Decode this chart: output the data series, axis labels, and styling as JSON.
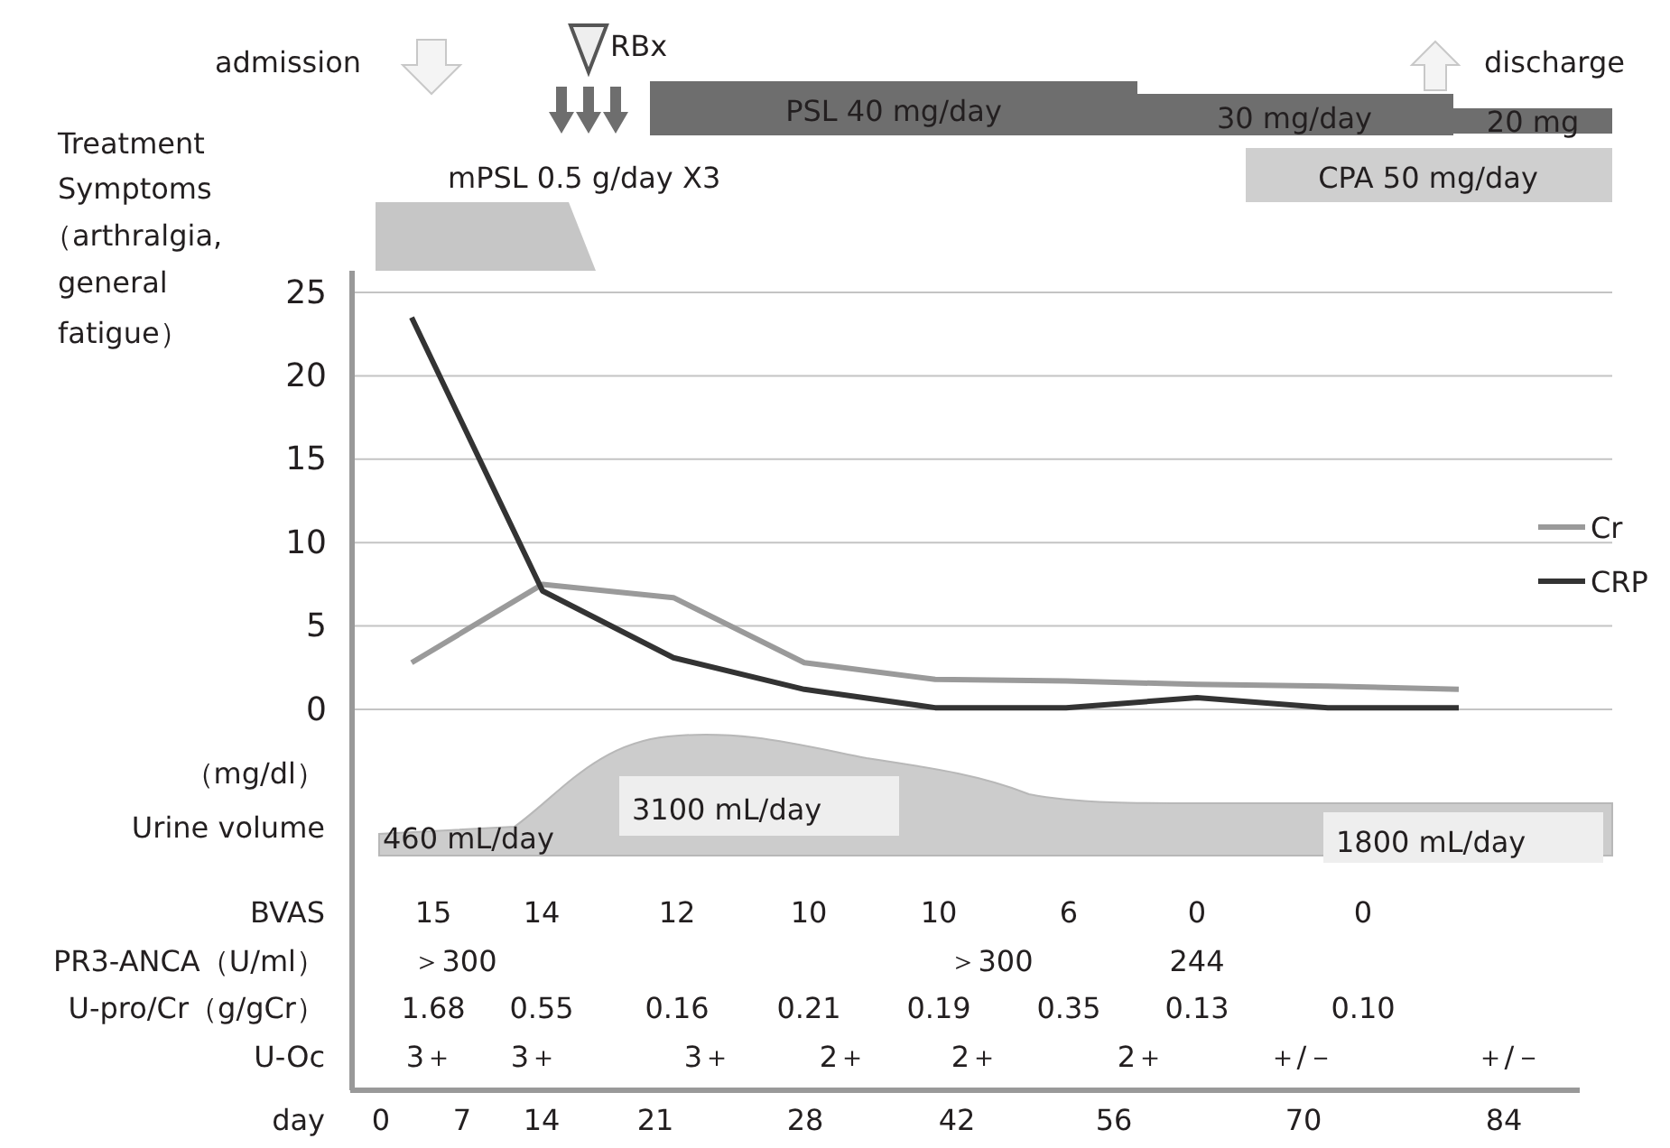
{
  "chart_data": {
    "type": "line",
    "ylabel": "（mg/dl）",
    "categories": [
      null,
      null,
      null,
      null,
      null,
      null,
      null,
      null,
      null
    ],
    "series": [
      {
        "name": "Cr",
        "color": "#9a9a9a",
        "values": [
          2.8,
          7.5,
          6.7,
          2.8,
          1.8,
          1.7,
          1.5,
          1.4,
          1.2
        ]
      },
      {
        "name": "CRP",
        "color": "#333333",
        "values": [
          23.5,
          7.1,
          3.1,
          1.2,
          0.1,
          0.1,
          0.7,
          0.1,
          0.1
        ]
      }
    ],
    "ylim": [
      0,
      25
    ],
    "yticks": [
      0,
      5,
      10,
      15,
      20,
      25
    ],
    "grid": "y",
    "legend": "right",
    "annotations": [
      "admission",
      "RBx",
      "PSL 40 mg/day",
      "30 mg/day",
      "20 mg",
      "discharge",
      "mPSL 0.5 g/day X3",
      "CPA 50 mg/day",
      "Treatment",
      "Symptoms",
      "（arthralgia,",
      "general",
      "fatigue）",
      "Urine volume",
      "460 mL/day",
      "3100 mL/day",
      "1800 mL/day",
      "BVAS",
      "15",
      "14",
      "12",
      "10",
      "10",
      "6",
      "0",
      "0",
      "PR3-ANCA（U/ml）",
      "＞300",
      "＞300",
      "244",
      "U-pro/Cr（g/gCr）",
      "1.68",
      "0.55",
      "0.16",
      "0.21",
      "0.19",
      "0.35",
      "0.13",
      "0.10",
      "U-Oc",
      "3＋",
      "3＋",
      "3＋",
      "2＋",
      "2＋",
      "2＋",
      "＋/－",
      "＋/－",
      "day",
      "0",
      "7",
      "14",
      "21",
      "28",
      "42",
      "56",
      "70",
      "84"
    ]
  }
}
